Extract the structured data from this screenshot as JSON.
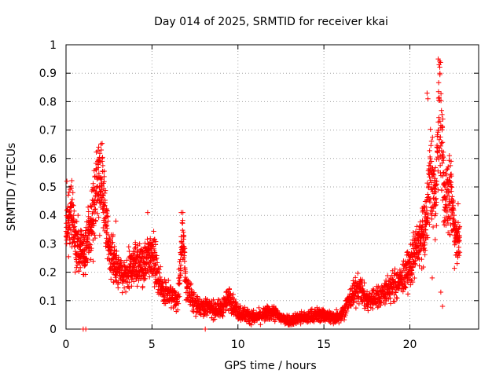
{
  "chart_data": {
    "type": "scatter",
    "title": "Day 014 of 2025, SRMTID for receiver kkai",
    "xlabel": "GPS time / hours",
    "ylabel": "SRMTID / TECUs",
    "xlim": [
      0,
      24
    ],
    "ylim": [
      0,
      1
    ],
    "x_ticks": [
      0,
      5,
      10,
      15,
      20
    ],
    "x_tick_labels": [
      "0",
      "5",
      "10",
      "15",
      "20"
    ],
    "y_ticks": [
      0,
      0.1,
      0.2,
      0.3,
      0.4,
      0.5,
      0.6,
      0.7,
      0.8,
      0.9,
      1
    ],
    "y_tick_labels": [
      "0",
      "0.1",
      "0.2",
      "0.3",
      "0.4",
      "0.5",
      "0.6",
      "0.7",
      "0.8",
      "0.9",
      "1"
    ],
    "grid": true,
    "marker": "+",
    "series": [
      {
        "name": "SRMTID",
        "color": "#ff0000",
        "envelope_note": "approximate trend of the dense point cloud (x hours, y TECU)",
        "envelope": [
          [
            0.0,
            0.33
          ],
          [
            0.3,
            0.42
          ],
          [
            0.6,
            0.3
          ],
          [
            1.0,
            0.25
          ],
          [
            1.5,
            0.38
          ],
          [
            1.8,
            0.5
          ],
          [
            2.1,
            0.52
          ],
          [
            2.5,
            0.28
          ],
          [
            3.0,
            0.2
          ],
          [
            3.5,
            0.18
          ],
          [
            4.0,
            0.24
          ],
          [
            4.5,
            0.22
          ],
          [
            5.0,
            0.28
          ],
          [
            5.5,
            0.15
          ],
          [
            6.0,
            0.12
          ],
          [
            6.5,
            0.1
          ],
          [
            6.8,
            0.34
          ],
          [
            7.0,
            0.14
          ],
          [
            7.5,
            0.09
          ],
          [
            8.0,
            0.08
          ],
          [
            8.5,
            0.07
          ],
          [
            9.0,
            0.07
          ],
          [
            9.5,
            0.11
          ],
          [
            10.0,
            0.06
          ],
          [
            10.5,
            0.05
          ],
          [
            11.0,
            0.04
          ],
          [
            11.5,
            0.05
          ],
          [
            12.0,
            0.06
          ],
          [
            12.5,
            0.04
          ],
          [
            13.0,
            0.03
          ],
          [
            13.5,
            0.04
          ],
          [
            14.0,
            0.04
          ],
          [
            14.5,
            0.05
          ],
          [
            15.0,
            0.05
          ],
          [
            15.5,
            0.04
          ],
          [
            16.0,
            0.05
          ],
          [
            16.5,
            0.1
          ],
          [
            17.0,
            0.15
          ],
          [
            17.5,
            0.1
          ],
          [
            18.0,
            0.11
          ],
          [
            18.5,
            0.13
          ],
          [
            19.0,
            0.15
          ],
          [
            19.5,
            0.17
          ],
          [
            20.0,
            0.22
          ],
          [
            20.5,
            0.3
          ],
          [
            20.9,
            0.34
          ],
          [
            21.2,
            0.55
          ],
          [
            21.5,
            0.45
          ],
          [
            21.7,
            0.8
          ],
          [
            22.0,
            0.45
          ],
          [
            22.3,
            0.5
          ],
          [
            22.6,
            0.35
          ],
          [
            22.9,
            0.3
          ]
        ],
        "outliers": [
          [
            1.0,
            0.0
          ],
          [
            1.15,
            0.0
          ],
          [
            8.1,
            0.0
          ],
          [
            0.05,
            0.52
          ],
          [
            0.4,
            0.48
          ],
          [
            1.9,
            0.64
          ],
          [
            2.05,
            0.63
          ],
          [
            2.1,
            0.6
          ],
          [
            21.0,
            0.83
          ],
          [
            21.05,
            0.81
          ],
          [
            21.65,
            0.95
          ],
          [
            21.7,
            0.93
          ],
          [
            21.75,
            0.9
          ],
          [
            21.3,
            0.18
          ],
          [
            21.8,
            0.13
          ],
          [
            21.9,
            0.08
          ],
          [
            22.3,
            0.61
          ],
          [
            22.4,
            0.59
          ],
          [
            6.7,
            0.41
          ],
          [
            4.75,
            0.41
          ],
          [
            2.9,
            0.38
          ],
          [
            9.5,
            0.14
          ],
          [
            16.7,
            0.17
          ]
        ]
      }
    ]
  }
}
